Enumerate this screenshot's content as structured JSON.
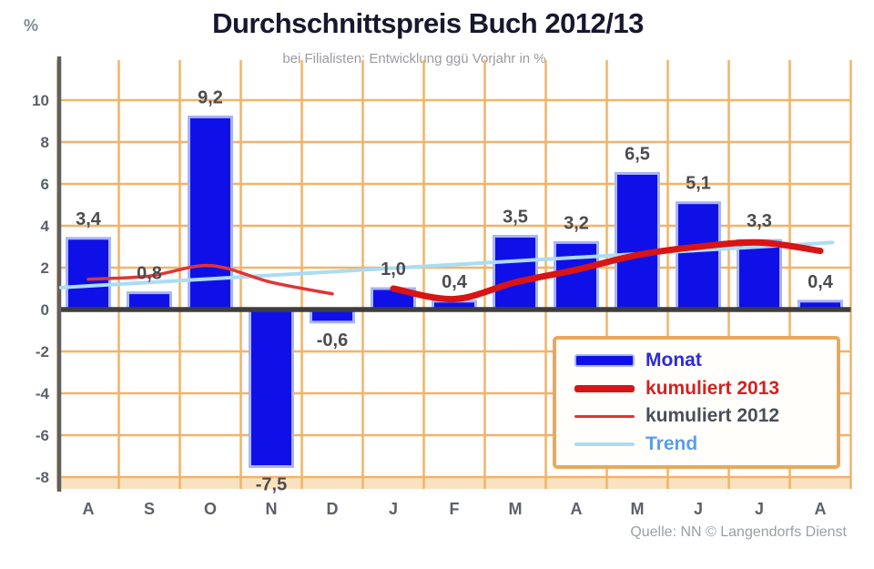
{
  "header": {
    "percent_label": "%",
    "title": "Durchschnittspreis Buch 2012/13",
    "subtitle": "bei Filialisten: Entwicklung ggü Vorjahr in %"
  },
  "source_note": "Quelle: NN © Langendorfs Dienst",
  "chart_data": {
    "type": "bar",
    "title": "Durchschnittspreis Buch 2012/13",
    "subtitle": "bei Filialisten: Entwicklung ggü Vorjahr in %",
    "ylabel": "%",
    "categories": [
      "A",
      "S",
      "O",
      "N",
      "D",
      "J",
      "F",
      "M",
      "A",
      "M",
      "J",
      "J",
      "A"
    ],
    "bars": {
      "name": "Monat",
      "color": "#0f10e8",
      "edge_color": "#a9b4f5",
      "values": [
        3.4,
        0.8,
        9.2,
        -7.5,
        -0.6,
        1.0,
        0.4,
        3.5,
        3.2,
        6.5,
        5.1,
        3.3,
        0.4
      ],
      "value_labels": [
        "3,4",
        "0,8",
        "9,2",
        "-7,5",
        "-0,6",
        "1,0",
        "0,4",
        "3,5",
        "3,2",
        "6,5",
        "5,1",
        "3,3",
        "0,4"
      ]
    },
    "lines": [
      {
        "name": "Trend",
        "color": "#abdcf3",
        "stroke_width": 4,
        "x_start": -0.45,
        "values_spread": true,
        "values": [
          1.05,
          3.2
        ]
      },
      {
        "name": "kumuliert 2012",
        "color": "#e13434",
        "stroke_width": 3.5,
        "start_index": 0,
        "values": [
          1.45,
          1.6,
          2.1,
          1.3,
          0.75
        ]
      },
      {
        "name": "kumuliert 2013",
        "color": "#d81414",
        "stroke_width": 7,
        "start_index": 5,
        "values": [
          1.0,
          0.5,
          1.3,
          1.9,
          2.6,
          3.0,
          3.2,
          2.8
        ]
      }
    ],
    "ylim": [
      -8,
      10
    ],
    "ytick_step": 2,
    "grid": {
      "show": true,
      "color": "#f2b368"
    },
    "zero_line_color": "#3e3e3e",
    "axis_color": "#5f5f5f",
    "tick_label_color": "#5c6068",
    "value_label_color": "#4c4c50",
    "legend_position": "bottom-right"
  },
  "legend": {
    "items": [
      {
        "label": "Monat",
        "label_color": "#2a2ae0",
        "swatch_color": "#0f10e8",
        "swatch": "bar"
      },
      {
        "label": "kumuliert 2013",
        "label_color": "#d42222",
        "swatch_color": "#d81414",
        "swatch": "thick-line"
      },
      {
        "label": "kumuliert 2012",
        "label_color": "#4a4f58",
        "swatch_color": "#e13434",
        "swatch": "thin-line"
      },
      {
        "label": "Trend",
        "label_color": "#5c9de8",
        "swatch_color": "#abdcf3",
        "swatch": "thin-line"
      }
    ]
  }
}
